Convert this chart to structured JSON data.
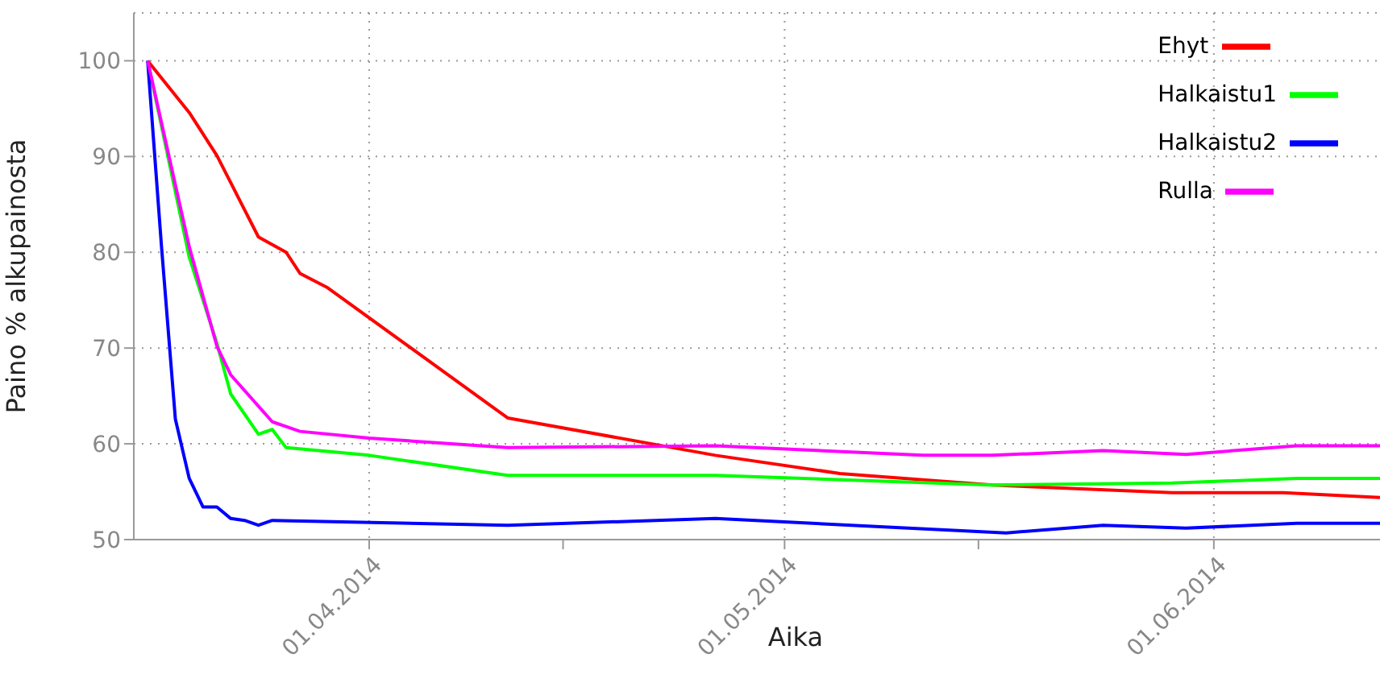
{
  "chart_data": {
    "type": "line",
    "xlabel": "Aika",
    "ylabel": "Paino % alkupainosta",
    "xlim": [
      "2014-03-15",
      "2014-06-13"
    ],
    "xticks": [
      {
        "value": "2014-04-01",
        "label": "01.04.2014"
      },
      {
        "value": "2014-04-15",
        "label": null
      },
      {
        "value": "2014-05-01",
        "label": "01.05.2014"
      },
      {
        "value": "2014-05-15",
        "label": null
      },
      {
        "value": "2014-06-01",
        "label": "01.06.2014"
      }
    ],
    "ylim": [
      50,
      105
    ],
    "yticks": [
      50,
      60,
      70,
      80,
      90,
      100
    ],
    "grid": true,
    "legend": "top right",
    "marker": "none",
    "line_style": "solid",
    "series": [
      {
        "name": "Ehyt",
        "color": "#ff0000",
        "x": [
          "2014-03-16",
          "2014-03-19",
          "2014-03-21",
          "2014-03-24",
          "2014-03-26",
          "2014-03-27",
          "2014-03-29",
          "2014-04-11",
          "2014-04-26",
          "2014-05-05",
          "2014-05-16",
          "2014-05-29",
          "2014-06-06",
          "2014-06-13"
        ],
        "values": [
          100,
          94.6,
          90.1,
          81.6,
          80,
          77.8,
          76.3,
          62.7,
          58.8,
          56.9,
          55.7,
          54.9,
          54.9,
          54.4
        ]
      },
      {
        "name": "Halkaistu1",
        "color": "#00ff00",
        "x": [
          "2014-03-16",
          "2014-03-19",
          "2014-03-21",
          "2014-03-22",
          "2014-03-24",
          "2014-03-25",
          "2014-03-26",
          "2014-04-01",
          "2014-04-11",
          "2014-04-26",
          "2014-05-16",
          "2014-05-29",
          "2014-06-07",
          "2014-06-13"
        ],
        "values": [
          100,
          79.5,
          70.5,
          65.2,
          61,
          61.5,
          59.6,
          58.8,
          56.7,
          56.7,
          55.7,
          55.9,
          56.4,
          56.4
        ]
      },
      {
        "name": "Halkaistu2",
        "color": "#0000ff",
        "x": [
          "2014-03-16",
          "2014-03-17",
          "2014-03-18",
          "2014-03-19",
          "2014-03-20",
          "2014-03-21",
          "2014-03-22",
          "2014-03-23",
          "2014-03-24",
          "2014-03-25",
          "2014-04-11",
          "2014-04-26",
          "2014-05-17",
          "2014-05-24",
          "2014-05-30",
          "2014-06-07",
          "2014-06-13"
        ],
        "values": [
          100,
          80.6,
          62.6,
          56.4,
          53.4,
          53.4,
          52.2,
          52,
          51.5,
          52,
          51.5,
          52.2,
          50.7,
          51.5,
          51.2,
          51.7,
          51.7
        ]
      },
      {
        "name": "Rulla",
        "color": "#ff00ff",
        "x": [
          "2014-03-16",
          "2014-03-19",
          "2014-03-21",
          "2014-03-22",
          "2014-03-25",
          "2014-03-26",
          "2014-03-27",
          "2014-04-01",
          "2014-04-11",
          "2014-04-26",
          "2014-05-11",
          "2014-05-16",
          "2014-05-24",
          "2014-05-30",
          "2014-06-07",
          "2014-06-13"
        ],
        "values": [
          100,
          80.6,
          70.2,
          67.2,
          62.3,
          61.8,
          61.3,
          60.6,
          59.6,
          59.8,
          58.8,
          58.8,
          59.3,
          58.9,
          59.8,
          59.8
        ]
      }
    ]
  }
}
